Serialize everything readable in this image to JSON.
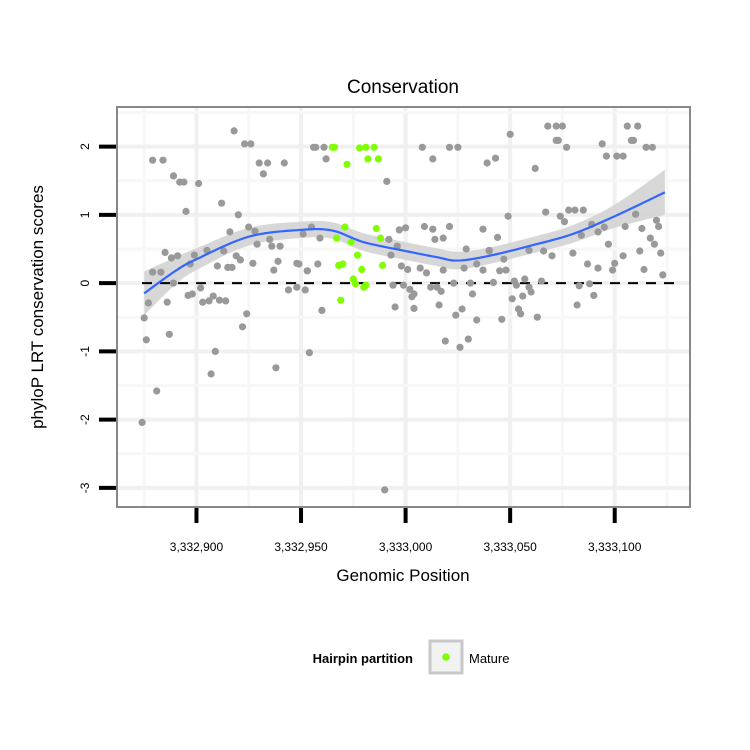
{
  "chart_data": {
    "type": "scatter",
    "title": "Conservation",
    "xlabel": "Genomic Position",
    "ylabel": "phyloP LRT conservation scores",
    "xlim": [
      3332862,
      3333136
    ],
    "ylim": [
      -3.28,
      2.58
    ],
    "x_ticks": [
      3332900,
      3332950,
      3333000,
      3333050,
      3333100
    ],
    "x_tick_labels": [
      "3,332,900",
      "3,332,950",
      "3,333,000",
      "3,333,050",
      "3,333,100"
    ],
    "y_ticks": [
      2,
      1,
      0,
      -1,
      -2,
      -3
    ],
    "y_tick_labels": [
      "2",
      "1",
      "0",
      "-1",
      "-2",
      "-3"
    ],
    "grid": true,
    "reference_line": {
      "y": 0,
      "style": "dashed"
    },
    "legend": {
      "title": "Hairpin partition",
      "placement": "bottom",
      "entries": [
        {
          "label": "Mature",
          "color": "#7fff00"
        }
      ]
    },
    "colors": {
      "other": "#999999",
      "mature": "#7fff00",
      "smooth": "#3366ff",
      "ribbon": "#d3d3d3"
    },
    "series": [
      {
        "name": "Other",
        "points": [
          [
            3332918,
            2.23
          ],
          [
            3332923,
            2.04
          ],
          [
            3332926,
            2.04
          ],
          [
            3332879,
            1.8
          ],
          [
            3332884,
            1.8
          ],
          [
            3332930,
            1.76
          ],
          [
            3332934,
            1.76
          ],
          [
            3332942,
            1.76
          ],
          [
            3332932,
            1.6
          ],
          [
            3332889,
            1.57
          ],
          [
            3332892,
            1.48
          ],
          [
            3332894,
            1.48
          ],
          [
            3332901,
            1.46
          ],
          [
            3332912,
            1.17
          ],
          [
            3332895,
            1.05
          ],
          [
            3332920,
            1.0
          ],
          [
            3332916,
            0.75
          ],
          [
            3332925,
            0.82
          ],
          [
            3332928,
            0.76
          ],
          [
            3332885,
            0.45
          ],
          [
            3332888,
            0.37
          ],
          [
            3332891,
            0.4
          ],
          [
            3332899,
            0.41
          ],
          [
            3332905,
            0.48
          ],
          [
            3332913,
            0.47
          ],
          [
            3332919,
            0.4
          ],
          [
            3332921,
            0.34
          ],
          [
            3332929,
            0.57
          ],
          [
            3332935,
            0.64
          ],
          [
            3332936,
            0.54
          ],
          [
            3332940,
            0.54
          ],
          [
            3332897,
            0.28
          ],
          [
            3332927,
            0.29
          ],
          [
            3332939,
            0.32
          ],
          [
            3332948,
            0.29
          ],
          [
            3332910,
            0.25
          ],
          [
            3332915,
            0.23
          ],
          [
            3332917,
            0.23
          ],
          [
            3332879,
            0.16
          ],
          [
            3332883,
            0.16
          ],
          [
            3332889,
            0.0
          ],
          [
            3332937,
            0.19
          ],
          [
            3332953,
            0.18
          ],
          [
            3332902,
            -0.07
          ],
          [
            3332896,
            -0.18
          ],
          [
            3332898,
            -0.16
          ],
          [
            3332903,
            -0.28
          ],
          [
            3332906,
            -0.26
          ],
          [
            3332908,
            -0.19
          ],
          [
            3332911,
            -0.25
          ],
          [
            3332914,
            -0.26
          ],
          [
            3332877,
            -0.29
          ],
          [
            3332886,
            -0.28
          ],
          [
            3332944,
            -0.1
          ],
          [
            3332948,
            -0.06
          ],
          [
            3332952,
            -0.1
          ],
          [
            3332875,
            -0.51
          ],
          [
            3332924,
            -0.45
          ],
          [
            3332922,
            -0.64
          ],
          [
            3332876,
            -0.83
          ],
          [
            3332887,
            -0.75
          ],
          [
            3332909,
            -1.0
          ],
          [
            3332954,
            -1.02
          ],
          [
            3332907,
            -1.33
          ],
          [
            3332938,
            -1.24
          ],
          [
            3332881,
            -1.58
          ],
          [
            3332874,
            -2.04
          ],
          [
            3332956,
            1.99
          ],
          [
            3332957,
            1.99
          ],
          [
            3332961,
            1.99
          ],
          [
            3332962,
            1.82
          ],
          [
            3332991,
            1.49
          ],
          [
            3333008,
            1.99
          ],
          [
            3333021,
            1.99
          ],
          [
            3333025,
            1.99
          ],
          [
            3333013,
            1.82
          ],
          [
            3333039,
            1.76
          ],
          [
            3333043,
            1.83
          ],
          [
            3332951,
            0.72
          ],
          [
            3332955,
            0.82
          ],
          [
            3332959,
            0.66
          ],
          [
            3332992,
            0.64
          ],
          [
            3332997,
            0.78
          ],
          [
            3333000,
            0.81
          ],
          [
            3333009,
            0.83
          ],
          [
            3333013,
            0.79
          ],
          [
            3333014,
            0.64
          ],
          [
            3333018,
            0.66
          ],
          [
            3333021,
            0.83
          ],
          [
            3333037,
            0.79
          ],
          [
            3332996,
            0.54
          ],
          [
            3332993,
            0.41
          ],
          [
            3333029,
            0.5
          ],
          [
            3333040,
            0.47
          ],
          [
            3332949,
            0.28
          ],
          [
            3332958,
            0.28
          ],
          [
            3332953,
            0.18
          ],
          [
            3332998,
            0.25
          ],
          [
            3333001,
            0.2
          ],
          [
            3333007,
            0.22
          ],
          [
            3333010,
            0.15
          ],
          [
            3333018,
            0.19
          ],
          [
            3333028,
            0.22
          ],
          [
            3333034,
            0.28
          ],
          [
            3333037,
            0.19
          ],
          [
            3332994,
            -0.03
          ],
          [
            3332999,
            -0.03
          ],
          [
            3333002,
            -0.09
          ],
          [
            3333004,
            -0.16
          ],
          [
            3333003,
            -0.2
          ],
          [
            3333012,
            -0.06
          ],
          [
            3333015,
            -0.06
          ],
          [
            3333017,
            -0.12
          ],
          [
            3333023,
            0.0
          ],
          [
            3333031,
            0.0
          ],
          [
            3333032,
            -0.16
          ],
          [
            3332960,
            -0.4
          ],
          [
            3332995,
            -0.35
          ],
          [
            3333004,
            -0.37
          ],
          [
            3333016,
            -0.32
          ],
          [
            3333024,
            -0.47
          ],
          [
            3333027,
            -0.38
          ],
          [
            3333034,
            -0.54
          ],
          [
            3333019,
            -0.85
          ],
          [
            3333026,
            -0.94
          ],
          [
            3333030,
            -0.82
          ],
          [
            3332990,
            -3.03
          ],
          [
            3333050,
            2.18
          ],
          [
            3333068,
            2.3
          ],
          [
            3333072,
            2.3
          ],
          [
            3333075,
            2.3
          ],
          [
            3333072,
            2.09
          ],
          [
            3333073,
            2.09
          ],
          [
            3333077,
            1.99
          ],
          [
            3333062,
            1.68
          ],
          [
            3333106,
            2.3
          ],
          [
            3333111,
            2.3
          ],
          [
            3333108,
            2.09
          ],
          [
            3333109,
            2.09
          ],
          [
            3333094,
            2.04
          ],
          [
            3333096,
            1.86
          ],
          [
            3333101,
            1.86
          ],
          [
            3333104,
            1.86
          ],
          [
            3333115,
            1.99
          ],
          [
            3333118,
            1.99
          ],
          [
            3333049,
            0.98
          ],
          [
            3333067,
            1.04
          ],
          [
            3333078,
            1.07
          ],
          [
            3333081,
            1.07
          ],
          [
            3333085,
            1.07
          ],
          [
            3333074,
            0.98
          ],
          [
            3333076,
            0.9
          ],
          [
            3333110,
            1.01
          ],
          [
            3333089,
            0.86
          ],
          [
            3333095,
            0.82
          ],
          [
            3333105,
            0.83
          ],
          [
            3333113,
            0.8
          ],
          [
            3333120,
            0.92
          ],
          [
            3333121,
            0.83
          ],
          [
            3333044,
            0.67
          ],
          [
            3333084,
            0.7
          ],
          [
            3333092,
            0.75
          ],
          [
            3333040,
            0.48
          ],
          [
            3333059,
            0.48
          ],
          [
            3333066,
            0.47
          ],
          [
            3333070,
            0.4
          ],
          [
            3333080,
            0.44
          ],
          [
            3333097,
            0.57
          ],
          [
            3333112,
            0.47
          ],
          [
            3333117,
            0.66
          ],
          [
            3333119,
            0.57
          ],
          [
            3333122,
            0.44
          ],
          [
            3333104,
            0.4
          ],
          [
            3333047,
            0.35
          ],
          [
            3333045,
            0.18
          ],
          [
            3333048,
            0.19
          ],
          [
            3333087,
            0.28
          ],
          [
            3333092,
            0.22
          ],
          [
            3333100,
            0.29
          ],
          [
            3333099,
            0.19
          ],
          [
            3333114,
            0.2
          ],
          [
            3333123,
            0.12
          ],
          [
            3333042,
            0.01
          ],
          [
            3333052,
            0.03
          ],
          [
            3333053,
            -0.03
          ],
          [
            3333057,
            0.06
          ],
          [
            3333059,
            -0.06
          ],
          [
            3333060,
            -0.13
          ],
          [
            3333065,
            0.03
          ],
          [
            3333056,
            -0.19
          ],
          [
            3333083,
            -0.04
          ],
          [
            3333088,
            -0.01
          ],
          [
            3333090,
            -0.18
          ],
          [
            3333051,
            -0.23
          ],
          [
            3333054,
            -0.38
          ],
          [
            3333055,
            -0.45
          ],
          [
            3333082,
            -0.32
          ],
          [
            3333046,
            -0.53
          ],
          [
            3333063,
            -0.5
          ]
        ]
      },
      {
        "name": "Mature",
        "points": [
          [
            3332965,
            1.99
          ],
          [
            3332966,
            1.99
          ],
          [
            3332972,
            1.74
          ],
          [
            3332978,
            1.98
          ],
          [
            3332981,
            1.99
          ],
          [
            3332985,
            1.99
          ],
          [
            3332982,
            1.82
          ],
          [
            3332987,
            1.82
          ],
          [
            3332971,
            0.82
          ],
          [
            3332986,
            0.8
          ],
          [
            3332967,
            0.66
          ],
          [
            3332974,
            0.6
          ],
          [
            3332988,
            0.66
          ],
          [
            3332977,
            0.41
          ],
          [
            3332968,
            0.26
          ],
          [
            3332970,
            0.28
          ],
          [
            3332979,
            0.2
          ],
          [
            3332989,
            0.26
          ],
          [
            3332975,
            0.06
          ],
          [
            3332976,
            -0.01
          ],
          [
            3332980,
            -0.06
          ],
          [
            3332981,
            -0.03
          ],
          [
            3332969,
            -0.25
          ]
        ]
      }
    ],
    "smooth": {
      "x": [
        3332875,
        3332890,
        3332900,
        3332925,
        3332950,
        3332965,
        3332980,
        3333000,
        3333015,
        3333025,
        3333040,
        3333060,
        3333080,
        3333100,
        3333124
      ],
      "y": [
        -0.15,
        0.18,
        0.35,
        0.68,
        0.78,
        0.77,
        0.6,
        0.47,
        0.38,
        0.33,
        0.4,
        0.55,
        0.72,
        0.98,
        1.33
      ],
      "se": [
        0.32,
        0.2,
        0.16,
        0.13,
        0.12,
        0.12,
        0.13,
        0.13,
        0.13,
        0.13,
        0.12,
        0.12,
        0.13,
        0.17,
        0.33
      ]
    }
  }
}
